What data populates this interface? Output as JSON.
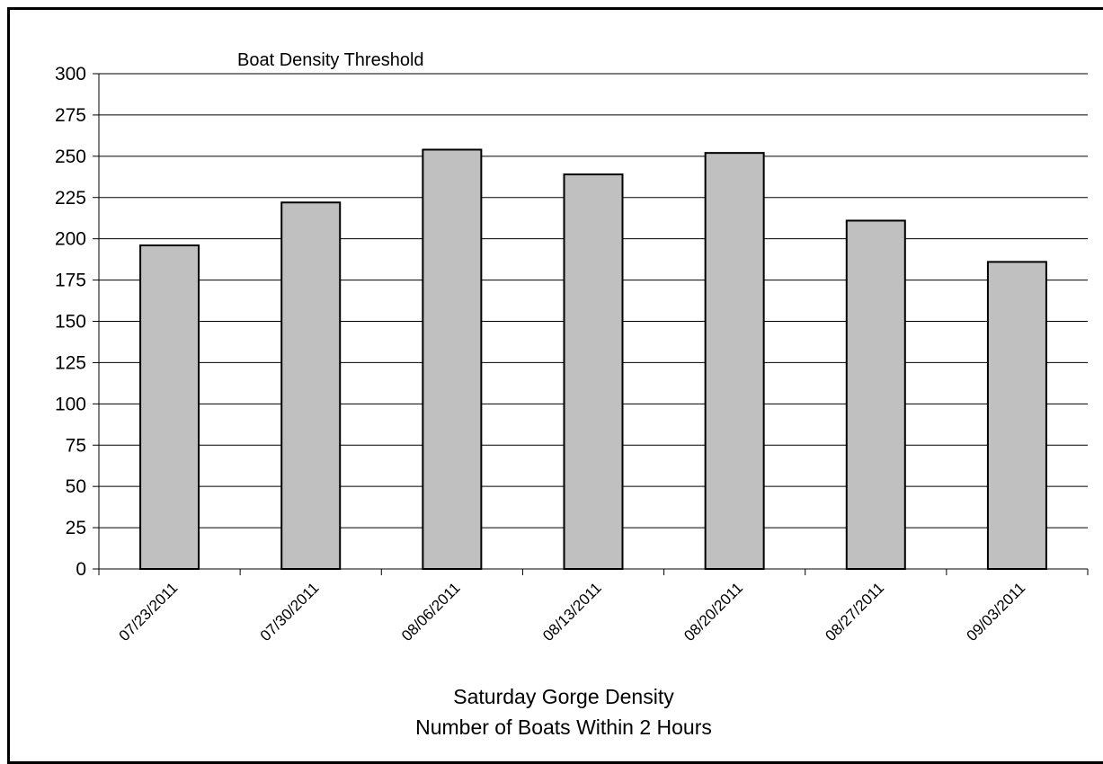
{
  "chart_data": {
    "type": "bar",
    "annotation": "Boat Density Threshold",
    "caption_lines": [
      "Saturday Gorge Density",
      "Number of Boats Within 2 Hours"
    ],
    "categories": [
      "07/23/2011",
      "07/30/2011",
      "08/06/2011",
      "08/13/2011",
      "08/20/2011",
      "08/27/2011",
      "09/03/2011"
    ],
    "values": [
      196,
      222,
      254,
      239,
      252,
      211,
      186
    ],
    "ylim": [
      0,
      300
    ],
    "yticks": [
      0,
      25,
      50,
      75,
      100,
      125,
      150,
      175,
      200,
      225,
      250,
      275,
      300
    ],
    "grid": true,
    "legend": "none"
  },
  "colors": {
    "bar_fill": "#c0c0c0",
    "bar_stroke": "#000000",
    "gridline": "#000000",
    "background": "#ffffff"
  }
}
